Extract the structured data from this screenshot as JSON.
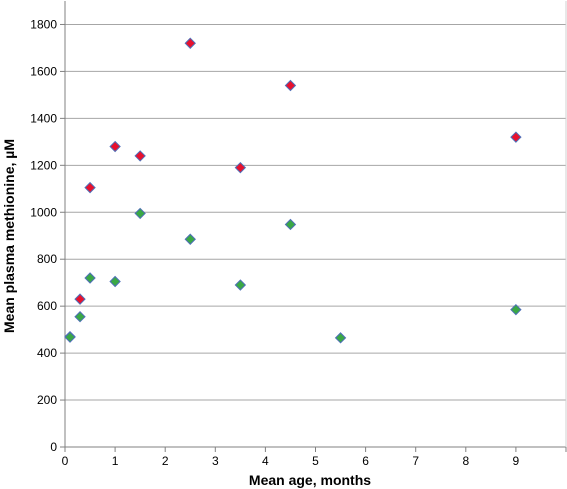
{
  "chart_data": {
    "type": "scatter",
    "xlabel": "Mean age, months",
    "ylabel": "Mean plasma methionine, µM",
    "xlim": [
      0,
      10
    ],
    "ylim": [
      0,
      1900
    ],
    "x_ticks": [
      0,
      1,
      2,
      3,
      4,
      5,
      6,
      7,
      8,
      9
    ],
    "y_ticks": [
      0,
      200,
      400,
      600,
      800,
      1000,
      1200,
      1400,
      1600,
      1800
    ],
    "grid": "horizontal",
    "legend": "none",
    "series": [
      {
        "color": "#e8112d",
        "outline": "#4f6fb8",
        "marker": "diamond",
        "points": [
          {
            "x": 0.1,
            "y": 470
          },
          {
            "x": 0.3,
            "y": 630
          },
          {
            "x": 0.5,
            "y": 1105
          },
          {
            "x": 1.0,
            "y": 1280
          },
          {
            "x": 1.5,
            "y": 1240
          },
          {
            "x": 2.5,
            "y": 1720
          },
          {
            "x": 3.5,
            "y": 1190
          },
          {
            "x": 4.5,
            "y": 1540
          },
          {
            "x": 9.0,
            "y": 1320
          }
        ]
      },
      {
        "color": "#3aa845",
        "outline": "#4f6fb8",
        "marker": "diamond",
        "points": [
          {
            "x": 0.1,
            "y": 468
          },
          {
            "x": 0.3,
            "y": 555
          },
          {
            "x": 0.5,
            "y": 720
          },
          {
            "x": 1.0,
            "y": 705
          },
          {
            "x": 1.5,
            "y": 995
          },
          {
            "x": 2.5,
            "y": 885
          },
          {
            "x": 3.5,
            "y": 690
          },
          {
            "x": 4.5,
            "y": 948
          },
          {
            "x": 5.5,
            "y": 465
          },
          {
            "x": 9.0,
            "y": 585
          }
        ]
      }
    ]
  }
}
